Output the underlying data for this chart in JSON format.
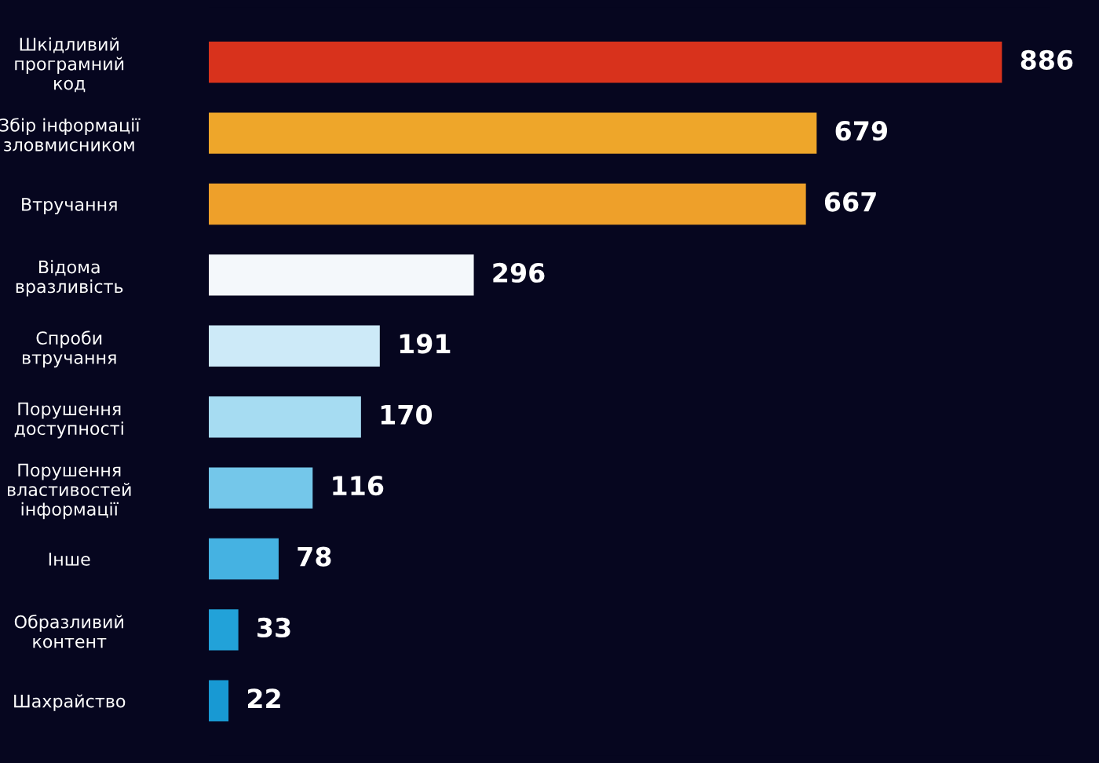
{
  "chart_data": {
    "type": "bar",
    "orientation": "horizontal",
    "data_labels": true,
    "grid": false,
    "legend": false,
    "tick_labels": "y",
    "categories": [
      "Шкідливий\nпрограмний\nкод",
      "Збір інформації\nзловмисником",
      "Втручання",
      "Відома\nвразливість",
      "Спроби\nвтручання",
      "Порушення\nдоступності",
      "Порушення\nвластивостей\nінформації",
      "Інше",
      "Образливий\nконтент",
      "Шахрайство"
    ],
    "values": [
      886,
      679,
      667,
      296,
      191,
      170,
      116,
      78,
      33,
      22
    ],
    "colors": [
      "#d8321c",
      "#eea62a",
      "#eea02a",
      "#f4f8fb",
      "#cdeaf8",
      "#a6dcf2",
      "#74c7ea",
      "#45b2e2",
      "#22a2d9",
      "#1899d3"
    ]
  }
}
